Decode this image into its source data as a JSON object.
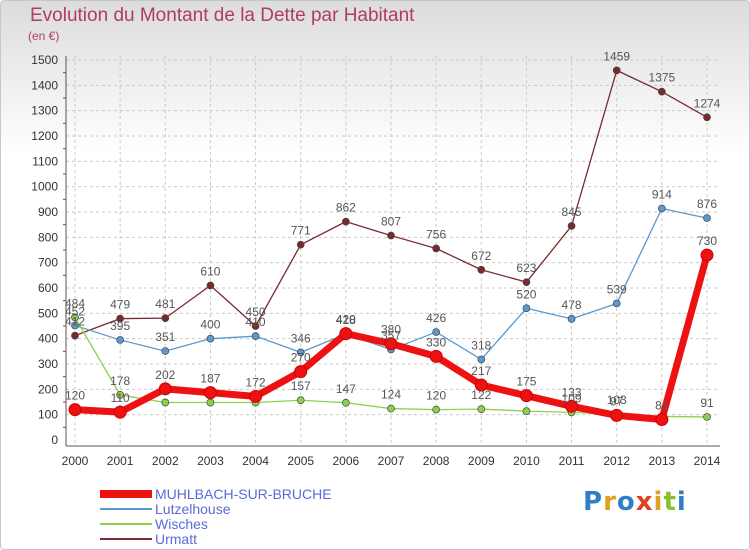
{
  "title": "Evolution du Montant de la Dette par Habitant",
  "subtitle": "(en €)",
  "logo": {
    "text": "Proxiti",
    "colors": [
      "#2f7fc8",
      "#e0a020",
      "#2f7fc8",
      "#e04020",
      "#e0a020",
      "#8abf30",
      "#2f7fc8"
    ]
  },
  "chart_data": {
    "type": "line",
    "x": [
      "2000",
      "2001",
      "2002",
      "2003",
      "2004",
      "2005",
      "2006",
      "2007",
      "2008",
      "2009",
      "2010",
      "2011",
      "2012",
      "2013",
      "2014"
    ],
    "ylim": [
      0,
      1500
    ],
    "yticks": [
      0,
      100,
      200,
      300,
      400,
      500,
      600,
      700,
      800,
      900,
      1000,
      1100,
      1200,
      1300,
      1400,
      1500
    ],
    "grid": true,
    "legend_position": "bottom-left",
    "series": [
      {
        "name": "Urmatt",
        "color": "#7a2a2f",
        "values": [
          412,
          479,
          481,
          610,
          450,
          771,
          862,
          807,
          756,
          672,
          623,
          845,
          1459,
          1375,
          1274
        ],
        "labels": [
          "412",
          "479",
          "481",
          "610",
          "450",
          "771",
          "862",
          "807",
          "756",
          "672",
          "623",
          "845",
          "1459",
          "1375",
          "1274"
        ]
      },
      {
        "name": "Lutzelhouse",
        "color": "#5a9ad0",
        "values": [
          452,
          395,
          351,
          400,
          410,
          346,
          418,
          357,
          426,
          318,
          520,
          478,
          539,
          914,
          876
        ],
        "labels": [
          "452",
          "395",
          "351",
          "400",
          "410",
          "346",
          "418",
          "357",
          "426",
          "318",
          "520",
          "478",
          "539",
          "914",
          "876"
        ]
      },
      {
        "name": "Wisches",
        "color": "#8ed04e",
        "values": [
          484,
          178,
          148,
          148,
          148,
          157,
          147,
          124,
          120,
          122,
          114,
          109,
          103,
          93,
          91
        ],
        "labels": [
          "484",
          "178",
          "",
          "",
          "",
          "157",
          "147",
          "124",
          "120",
          "122",
          "",
          "109",
          "103",
          "",
          "91"
        ]
      },
      {
        "name": "MUHLBACH-SUR-BRUCHE",
        "color": "#ee1111",
        "values": [
          120,
          110,
          202,
          187,
          172,
          270,
          420,
          380,
          330,
          217,
          175,
          133,
          97,
          81,
          730
        ],
        "labels": [
          "120",
          "110",
          "202",
          "187",
          "172",
          "270",
          "420",
          "380",
          "330",
          "217",
          "175",
          "133",
          "97",
          "81",
          "730"
        ]
      }
    ]
  }
}
